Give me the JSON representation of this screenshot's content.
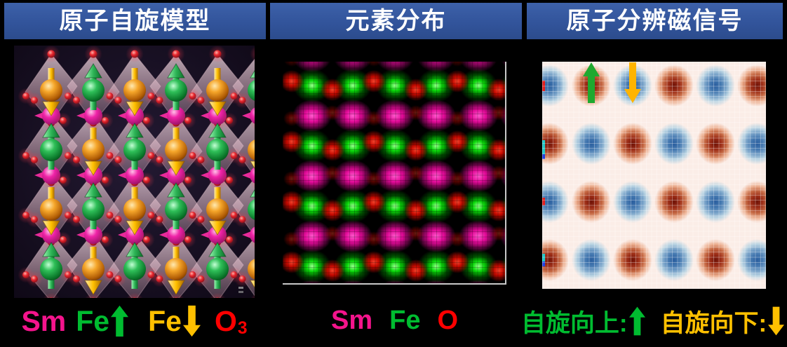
{
  "headers": [
    {
      "label": "原子自旋模型"
    },
    {
      "label": "元素分布"
    },
    {
      "label": "原子分辨磁信号"
    }
  ],
  "legend_left": {
    "sm": "Sm",
    "fe_up": "Fe",
    "fe_down": "Fe",
    "o": "O",
    "o_subscript": "3"
  },
  "legend_middle": {
    "sm": "Sm",
    "fe": "Fe",
    "o": "O"
  },
  "legend_right": {
    "up": "自旋向上:",
    "down": "自旋向下:"
  },
  "colors": {
    "header_bg": "#32549B",
    "header_text": "#FFFFFF",
    "sm_pink": "#F4148C",
    "fe_green": "#00BC30",
    "fe_gold": "#FFC000",
    "o_red": "#FF0000",
    "arrow_green_3d": "#1FA92F",
    "arrow_gold_3d": "#FFB400",
    "map_green": "#00E400",
    "map_red": "#E60000",
    "map_magenta": "#EE00A0",
    "signal_red": "#6E1207",
    "signal_blue": "#2A5E9E",
    "signal_bg": "#FBEDE7",
    "model_bg": "#140D1E"
  },
  "spin_model": {
    "fe_rows": [
      [
        "down",
        "up",
        "down",
        "up",
        "down",
        "up"
      ],
      [
        "up",
        "down",
        "up",
        "down",
        "up",
        "down"
      ],
      [
        "down",
        "up",
        "down",
        "up",
        "down",
        "up"
      ],
      [
        "up",
        "down",
        "up",
        "down",
        "up",
        "down"
      ]
    ],
    "sm_row_count": 3
  },
  "element_map": {
    "row_types": [
      "Sm",
      "FeO",
      "Sm",
      "FeO",
      "Sm",
      "FeO",
      "Sm",
      "FeO",
      "Sm"
    ]
  },
  "magnetic_map": {
    "rows": [
      "BRBRBR",
      "RBRBRB",
      "BRBRBR",
      "RBRBRB"
    ],
    "up_arrow_cell": {
      "row": 0,
      "col": 1
    },
    "down_arrow_cell": {
      "row": 0,
      "col": 2
    }
  }
}
